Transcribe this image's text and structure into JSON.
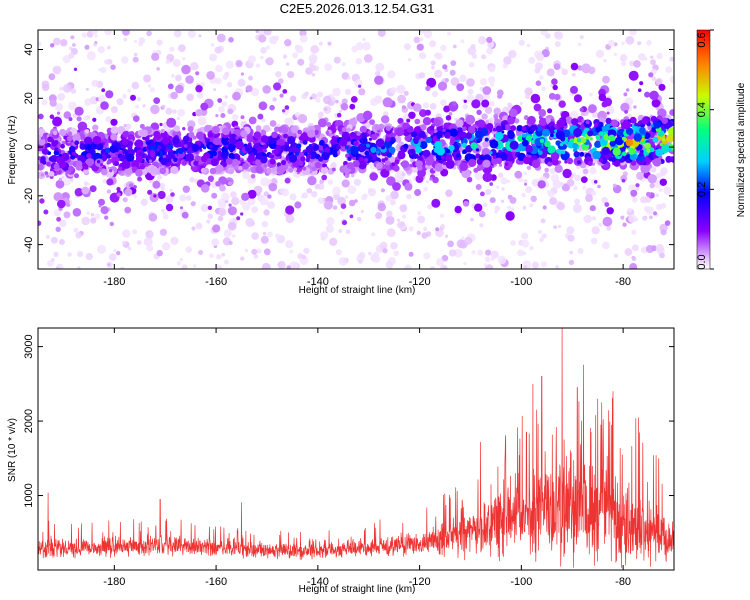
{
  "title": "C2E5.2026.013.12.54.G31",
  "chart_data": [
    {
      "type": "heatmap",
      "title": "C2E5.2026.013.12.54.G31",
      "xlabel": "Height of straight line (km)",
      "ylabel": "Frequency (Hz)",
      "xlim": [
        -195,
        -70
      ],
      "ylim": [
        -50,
        48
      ],
      "xticks": [
        -180,
        -160,
        -140,
        -120,
        -100,
        -80
      ],
      "yticks": [
        -40,
        -20,
        0,
        20,
        40
      ],
      "colorbar": {
        "label": "Normalized spectral amplitude",
        "range": [
          0.0,
          0.6
        ],
        "ticks": [
          "0.0",
          "0.2",
          "0.4",
          "0.6"
        ],
        "colors": [
          "#ffffff",
          "#e8c8ff",
          "#8a00ff",
          "#0000ff",
          "#00d0ff",
          "#00ff80",
          "#c8ff00",
          "#ff8000",
          "#ff0000"
        ]
      },
      "band_profile": [
        {
          "x": -195,
          "center": -3,
          "amp": 0.2
        },
        {
          "x": -180,
          "center": -2,
          "amp": 0.22
        },
        {
          "x": -160,
          "center": -1,
          "amp": 0.22
        },
        {
          "x": -140,
          "center": -1,
          "amp": 0.23
        },
        {
          "x": -120,
          "center": 0,
          "amp": 0.28
        },
        {
          "x": -110,
          "center": 1,
          "amp": 0.32
        },
        {
          "x": -100,
          "center": 2,
          "amp": 0.36
        },
        {
          "x": -90,
          "center": 2,
          "amp": 0.42
        },
        {
          "x": -80,
          "center": 2,
          "amp": 0.52
        },
        {
          "x": -70,
          "center": 3,
          "amp": 0.55
        }
      ]
    },
    {
      "type": "line",
      "xlabel": "Height of straight line (km)",
      "ylabel": "SNR (10 * v/v)",
      "xlim": [
        -195,
        -70
      ],
      "ylim": [
        0,
        3250
      ],
      "xticks": [
        -180,
        -160,
        -140,
        -120,
        -100,
        -80
      ],
      "yticks": [
        1000,
        2000,
        3000
      ],
      "color": "#ee3333",
      "envelope": [
        {
          "x": -195,
          "base": 280,
          "spread": 180
        },
        {
          "x": -185,
          "base": 300,
          "spread": 160
        },
        {
          "x": -170,
          "base": 340,
          "spread": 170
        },
        {
          "x": -160,
          "base": 290,
          "spread": 140
        },
        {
          "x": -150,
          "base": 260,
          "spread": 130
        },
        {
          "x": -140,
          "base": 250,
          "spread": 120
        },
        {
          "x": -130,
          "base": 300,
          "spread": 160
        },
        {
          "x": -120,
          "base": 360,
          "spread": 200
        },
        {
          "x": -112,
          "base": 450,
          "spread": 350
        },
        {
          "x": -105,
          "base": 600,
          "spread": 550
        },
        {
          "x": -98,
          "base": 800,
          "spread": 800
        },
        {
          "x": -92,
          "base": 900,
          "spread": 1000
        },
        {
          "x": -85,
          "base": 800,
          "spread": 900
        },
        {
          "x": -78,
          "base": 600,
          "spread": 700
        },
        {
          "x": -70,
          "base": 350,
          "spread": 350
        }
      ],
      "peaks": [
        {
          "x": -193,
          "y": 1040
        },
        {
          "x": -171,
          "y": 950
        },
        {
          "x": -155,
          "y": 910
        },
        {
          "x": -108,
          "y": 1720
        },
        {
          "x": -99,
          "y": 1850
        },
        {
          "x": -96,
          "y": 2600
        },
        {
          "x": -92,
          "y": 3250
        },
        {
          "x": -89,
          "y": 2450
        },
        {
          "x": -85,
          "y": 2300
        },
        {
          "x": -82,
          "y": 2400
        },
        {
          "x": -77,
          "y": 2050
        },
        {
          "x": -73,
          "y": 1500
        }
      ]
    }
  ]
}
